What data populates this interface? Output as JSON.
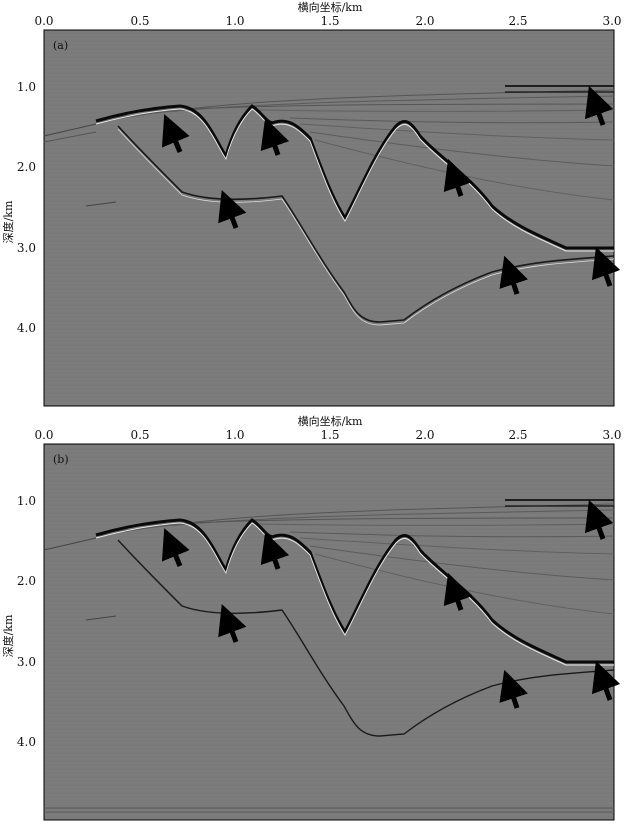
{
  "figure": {
    "xaxis_title": "横向坐标/km",
    "yaxis_title": "深度/km",
    "x_ticks": [
      "0.0",
      "0.5",
      "1.0",
      "1.5",
      "2.0",
      "2.5",
      "3.0"
    ],
    "y_ticks": [
      "1.0",
      "2.0",
      "3.0",
      "4.0"
    ],
    "panels": [
      {
        "tag": "(a)"
      },
      {
        "tag": "(b)"
      }
    ],
    "colors": {
      "background": "#7a7a7a",
      "reflector": "#0a0a0a",
      "highlight": "#e8e8e8",
      "arrow": "#000000"
    }
  }
}
